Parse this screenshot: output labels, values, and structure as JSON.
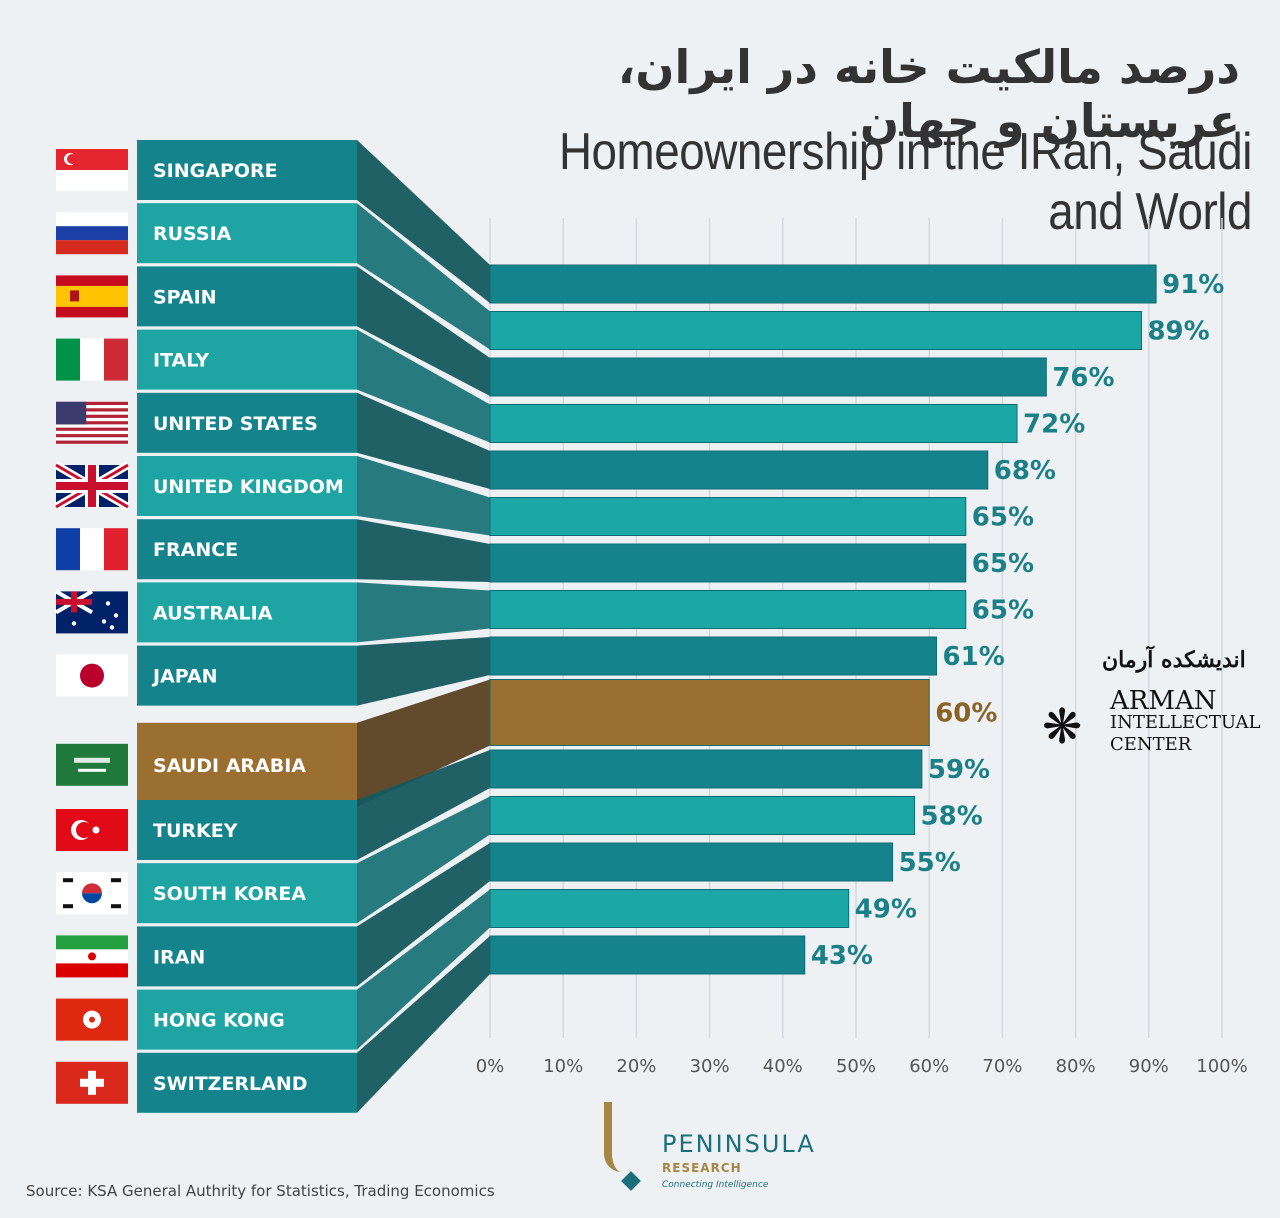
{
  "title_fa": "درصد مالکیت خانه در ایران، عربستان و جهان",
  "title_en": "Homeownership in the IRan, Saudi and World",
  "source": "Source: KSA General Authrity for Statistics, Trading Economics",
  "watermark": {
    "name_fa": "اندیشکده آرمان",
    "line1": "ARMAN",
    "line2": "INTELLECTUAL",
    "line3": "CENTER",
    "logo_icon": "snowflake-logo-icon"
  },
  "brand": {
    "name": "PENINSULA",
    "sub": "RESEARCH",
    "tagline": "Connecting Intelligence"
  },
  "colors": {
    "teal_dark": "#14838b",
    "teal_light": "#1aa7a6",
    "highlight": "#9a6f2f",
    "label_dark": "#14838b",
    "label_light": "#1ea5a3",
    "value_text": "#1b7f87",
    "highlight_text": "#8a6224"
  },
  "chart_data": {
    "type": "bar",
    "orientation": "horizontal",
    "categories": [
      "SINGAPORE",
      "RUSSIA",
      "SPAIN",
      "ITALY",
      "UNITED STATES",
      "UNITED KINGDOM",
      "FRANCE",
      "AUSTRALIA",
      "JAPAN",
      "SAUDI ARABIA",
      "TURKEY",
      "SOUTH KOREA",
      "IRAN",
      "HONG KONG",
      "SWITZERLAND"
    ],
    "values": [
      91,
      89,
      76,
      72,
      68,
      65,
      65,
      65,
      61,
      60,
      59,
      58,
      55,
      49,
      43
    ],
    "value_labels": [
      "91%",
      "89%",
      "76%",
      "72%",
      "68%",
      "65%",
      "65%",
      "65%",
      "61%",
      "60%",
      "59%",
      "58%",
      "55%",
      "49%",
      "43%"
    ],
    "highlight_category": "SAUDI ARABIA",
    "flag_icons": [
      "singapore-flag-icon",
      "russia-flag-icon",
      "spain-flag-icon",
      "italy-flag-icon",
      "united-states-flag-icon",
      "united-kingdom-flag-icon",
      "france-flag-icon",
      "australia-flag-icon",
      "japan-flag-icon",
      "saudi-arabia-flag-icon",
      "turkey-flag-icon",
      "south-korea-flag-icon",
      "iran-flag-icon",
      "hong-kong-flag-icon",
      "switzerland-flag-icon"
    ],
    "xlim": [
      0,
      100
    ],
    "x_ticks": [
      "0%",
      "10%",
      "20%",
      "30%",
      "40%",
      "50%",
      "60%",
      "70%",
      "80%",
      "90%",
      "100%"
    ],
    "grid": true,
    "unit": "%"
  }
}
